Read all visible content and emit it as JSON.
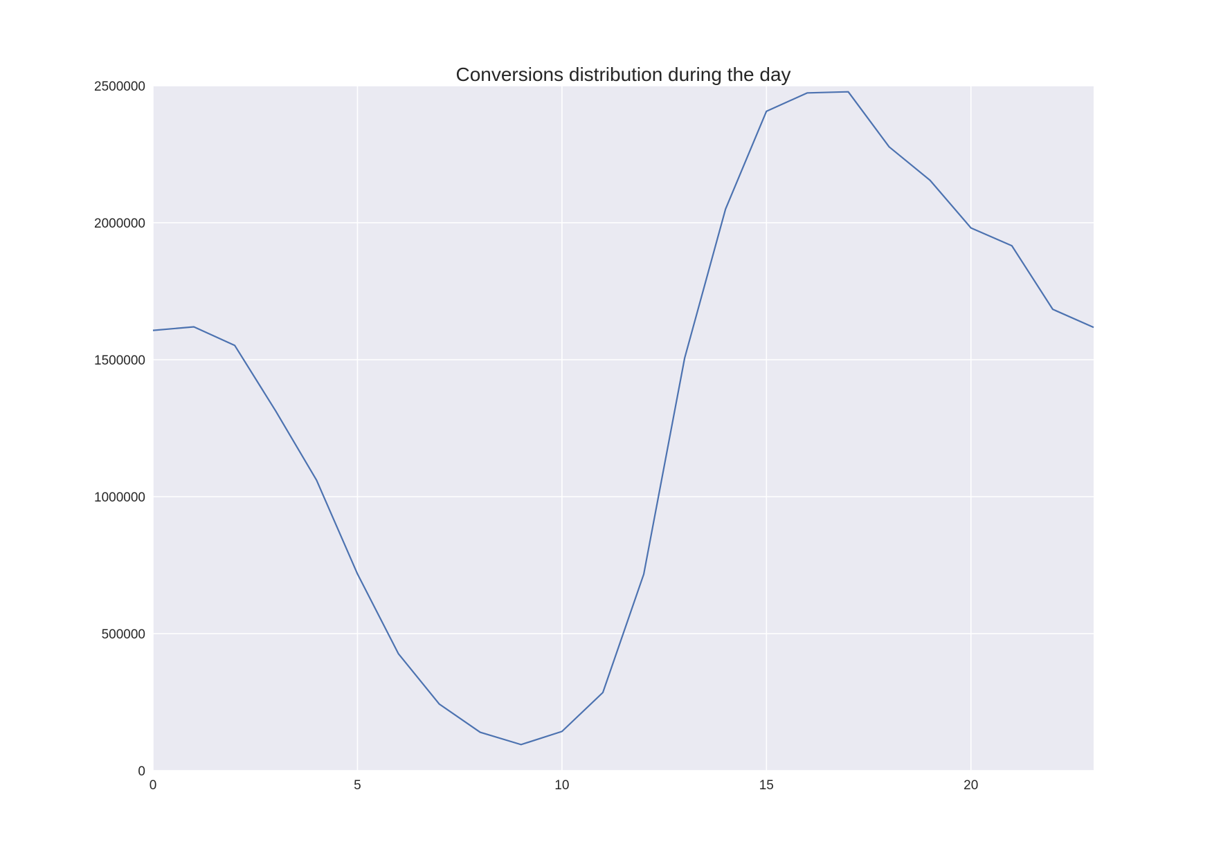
{
  "chart_data": {
    "type": "line",
    "title": "Conversions distribution during the day",
    "xlabel": "",
    "ylabel": "",
    "xlim": [
      0,
      23
    ],
    "ylim": [
      0,
      2500000
    ],
    "x_ticks": [
      0,
      5,
      10,
      15,
      20
    ],
    "y_ticks": [
      0,
      500000,
      1000000,
      1500000,
      2000000,
      2500000
    ],
    "x_tick_labels": [
      "0",
      "5",
      "10",
      "15",
      "20"
    ],
    "y_tick_labels": [
      "0",
      "500000",
      "1000000",
      "1500000",
      "2000000",
      "2500000"
    ],
    "grid": true,
    "legend": "none",
    "colors": {
      "plot_background": "#eaeaf2",
      "grid": "#ffffff",
      "line": "#4c72b0"
    },
    "series": [
      {
        "x": [
          0,
          1,
          2,
          3,
          4,
          5,
          6,
          7,
          8,
          9,
          10,
          11,
          12,
          13,
          14,
          15,
          16,
          17,
          18,
          19,
          20,
          21,
          22,
          23
        ],
        "values": [
          1607000,
          1620000,
          1552000,
          1313000,
          1060000,
          718000,
          427000,
          243000,
          140000,
          95000,
          143000,
          285000,
          717000,
          1506000,
          2050000,
          2407000,
          2474000,
          2478000,
          2277000,
          2155000,
          1981000,
          1916000,
          1684000,
          1618000
        ]
      }
    ]
  }
}
